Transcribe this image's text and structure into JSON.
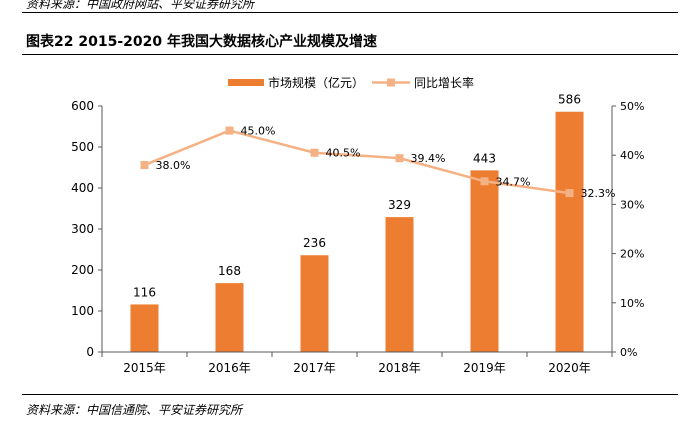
{
  "header": {
    "previous_source": "资料来源：中国政府网站、平安证券研究所",
    "figure_title": "图表22 2015-2020 年我国大数据核心产业规模及增速"
  },
  "footer": {
    "source": "资料来源：中国信通院、平安证券研究所"
  },
  "colors": {
    "bar": "#ED7D31",
    "line": "#F4B183",
    "axis": "#595959"
  },
  "chart_data": {
    "type": "bar",
    "categories": [
      "2015年",
      "2016年",
      "2017年",
      "2018年",
      "2019年",
      "2020年"
    ],
    "series": [
      {
        "name": "市场规模（亿元）",
        "type": "bar",
        "axis": "left",
        "values": [
          116,
          168,
          236,
          329,
          443,
          586
        ],
        "labels": [
          "116",
          "168",
          "236",
          "329",
          "443",
          "586"
        ]
      },
      {
        "name": "同比增长率",
        "type": "line",
        "axis": "right",
        "values": [
          38.0,
          45.0,
          40.5,
          39.4,
          34.7,
          32.3
        ],
        "labels": [
          "38.0%",
          "45.0%",
          "40.5%",
          "39.4%",
          "34.7%",
          "32.3%"
        ]
      }
    ],
    "y_left": {
      "min": 0,
      "max": 600,
      "ticks": [
        0,
        100,
        200,
        300,
        400,
        500,
        600
      ],
      "tick_labels": [
        "0",
        "100",
        "200",
        "300",
        "400",
        "500",
        "600"
      ]
    },
    "y_right": {
      "min": 0,
      "max": 50,
      "ticks": [
        0,
        10,
        20,
        30,
        40,
        50
      ],
      "tick_labels": [
        "0%",
        "10%",
        "20%",
        "30%",
        "40%",
        "50%"
      ]
    },
    "legend_position": "top-center",
    "grid": false
  }
}
